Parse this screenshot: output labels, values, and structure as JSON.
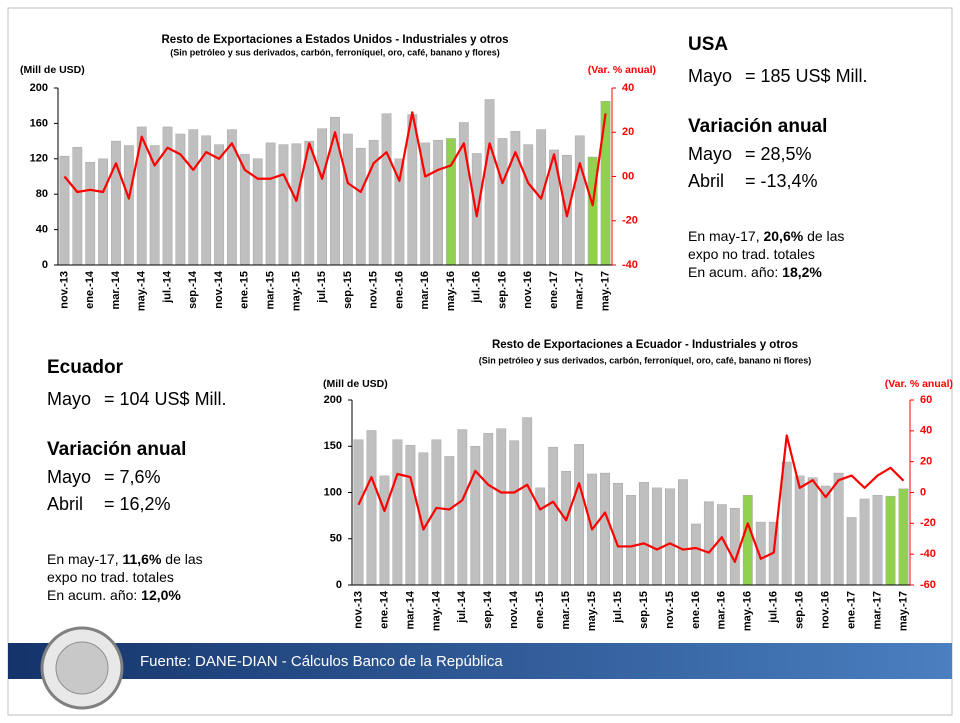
{
  "chart_data": [
    {
      "type": "bar_line",
      "title": "Resto de Exportaciones a Estados Unidos - Industriales y otros",
      "subtitle": "(Sin petróleo y sus derivados, carbón, ferroníquel, oro, café, banano y flores)",
      "y_label": "(Mill de USD)",
      "y2_label": "(Var. % anual)",
      "categories": [
        "nov.-13",
        null,
        "ene.-14",
        null,
        "mar.-14",
        null,
        "may.-14",
        null,
        "jul.-14",
        null,
        "sep.-14",
        null,
        "nov.-14",
        null,
        "ene.-15",
        null,
        "mar.-15",
        null,
        "may.-15",
        null,
        "jul.-15",
        null,
        "sep.-15",
        null,
        "nov.-15",
        null,
        "ene.-16",
        null,
        "mar.-16",
        null,
        "may.-16",
        null,
        "jul.-16",
        null,
        "sep.-16",
        null,
        "nov.-16",
        null,
        "ene.-17",
        null,
        "mar.-17",
        null,
        "may.-17"
      ],
      "series": [
        {
          "type": "bar",
          "colors": [
            "#bfbfbf",
            "#bfbfbf",
            "#bfbfbf",
            "#bfbfbf",
            "#bfbfbf",
            "#bfbfbf",
            "#bfbfbf",
            "#bfbfbf",
            "#bfbfbf",
            "#bfbfbf",
            "#bfbfbf",
            "#bfbfbf",
            "#bfbfbf",
            "#bfbfbf",
            "#bfbfbf",
            "#bfbfbf",
            "#bfbfbf",
            "#bfbfbf",
            "#bfbfbf",
            "#bfbfbf",
            "#bfbfbf",
            "#bfbfbf",
            "#bfbfbf",
            "#bfbfbf",
            "#bfbfbf",
            "#bfbfbf",
            "#bfbfbf",
            "#bfbfbf",
            "#bfbfbf",
            "#bfbfbf",
            "#92d050",
            "#bfbfbf",
            "#bfbfbf",
            "#bfbfbf",
            "#bfbfbf",
            "#bfbfbf",
            "#bfbfbf",
            "#bfbfbf",
            "#bfbfbf",
            "#bfbfbf",
            "#bfbfbf",
            "#92d050",
            "#92d050"
          ],
          "values": [
            123,
            133,
            116,
            120,
            140,
            135,
            156,
            135,
            156,
            148,
            153,
            146,
            136,
            153,
            125,
            120,
            138,
            136,
            137,
            140,
            154,
            167,
            148,
            132,
            141,
            171,
            120,
            170,
            138,
            141,
            143,
            161,
            126,
            187,
            143,
            151,
            136,
            153,
            130,
            124,
            146,
            122,
            185
          ]
        },
        {
          "type": "line",
          "axis": "y2",
          "color": "#ff0000",
          "values": [
            0,
            -7,
            -6,
            -7,
            6,
            -10,
            18,
            5,
            13,
            10,
            3,
            11,
            8,
            15,
            3,
            -1,
            -1,
            1,
            -11,
            15,
            -1,
            20,
            -3,
            -7,
            6,
            11,
            -2,
            29,
            0,
            3,
            5,
            15,
            -18,
            15,
            -3,
            11,
            -3,
            -10,
            10,
            -18,
            6,
            -13,
            28.5
          ]
        }
      ],
      "ylim": [
        0,
        200
      ],
      "yticks": [
        0,
        40,
        80,
        120,
        160,
        200
      ],
      "y2lim": [
        -40,
        40
      ],
      "y2ticks": [
        -40,
        -20,
        {
          "value": 0,
          "label": "00"
        },
        20,
        40
      ]
    },
    {
      "type": "bar_line",
      "title": "Resto de Exportaciones a Ecuador - Industriales y otros",
      "subtitle": "(Sin petróleo y sus derivados, carbón, ferroníquel, oro, café, banano ni flores)",
      "y_label": "(Mill de USD)",
      "y2_label": "(Var. % anual)",
      "categories": [
        "nov.-13",
        null,
        "ene.-14",
        null,
        "mar.-14",
        null,
        "may.-14",
        null,
        "jul.-14",
        null,
        "sep.-14",
        null,
        "nov.-14",
        null,
        "ene.-15",
        null,
        "mar.-15",
        null,
        "may.-15",
        null,
        "jul.-15",
        null,
        "sep.-15",
        null,
        "nov.-15",
        null,
        "ene.-16",
        null,
        "mar.-16",
        null,
        "may.-16",
        null,
        "jul.-16",
        null,
        "sep.-16",
        null,
        "nov.-16",
        null,
        "ene.-17",
        null,
        "mar.-17",
        null,
        "may.-17"
      ],
      "series": [
        {
          "type": "bar",
          "colors": [
            "#bfbfbf",
            "#bfbfbf",
            "#bfbfbf",
            "#bfbfbf",
            "#bfbfbf",
            "#bfbfbf",
            "#bfbfbf",
            "#bfbfbf",
            "#bfbfbf",
            "#bfbfbf",
            "#bfbfbf",
            "#bfbfbf",
            "#bfbfbf",
            "#bfbfbf",
            "#bfbfbf",
            "#bfbfbf",
            "#bfbfbf",
            "#bfbfbf",
            "#bfbfbf",
            "#bfbfbf",
            "#bfbfbf",
            "#bfbfbf",
            "#bfbfbf",
            "#bfbfbf",
            "#bfbfbf",
            "#bfbfbf",
            "#bfbfbf",
            "#bfbfbf",
            "#bfbfbf",
            "#bfbfbf",
            "#92d050",
            "#bfbfbf",
            "#bfbfbf",
            "#bfbfbf",
            "#bfbfbf",
            "#bfbfbf",
            "#bfbfbf",
            "#bfbfbf",
            "#bfbfbf",
            "#bfbfbf",
            "#bfbfbf",
            "#92d050",
            "#92d050"
          ],
          "values": [
            157,
            167,
            118,
            157,
            151,
            143,
            157,
            139,
            168,
            150,
            164,
            169,
            156,
            181,
            105,
            149,
            123,
            152,
            120,
            121,
            110,
            97,
            111,
            105,
            104,
            114,
            66,
            90,
            87,
            83,
            97,
            68,
            68,
            133,
            118,
            116,
            107,
            121,
            73,
            93,
            97,
            96,
            104
          ]
        },
        {
          "type": "line",
          "axis": "y2",
          "color": "#ff0000",
          "values": [
            -8,
            10,
            -12,
            12,
            10,
            -24,
            -10,
            -11,
            -5,
            14,
            5,
            0,
            0,
            5,
            -11,
            -6,
            -18,
            6,
            -24,
            -13,
            -35,
            -35,
            -33,
            -37,
            -33,
            -37,
            -36,
            -39,
            -29,
            -45,
            -20,
            -43,
            -39,
            37,
            3,
            8,
            -3,
            8,
            11,
            3,
            11,
            16,
            7.6
          ]
        }
      ],
      "ylim": [
        0,
        200
      ],
      "yticks": [
        0,
        50,
        100,
        150,
        200
      ],
      "y2lim": [
        -60,
        60
      ],
      "y2ticks": [
        -60,
        -40,
        -20,
        0,
        20,
        40,
        60
      ]
    }
  ],
  "panels": {
    "usa": {
      "name": "USA",
      "month": {
        "label": "Mayo",
        "value": "= 185 US$ Mill."
      },
      "variation_title": "Variación anual",
      "rows": [
        {
          "label": "Mayo",
          "value": "= 28,5%"
        },
        {
          "label": "Abril",
          "value": "= -13,4%"
        }
      ],
      "note": [
        [
          "En may-17, ",
          "20,6%",
          " de las"
        ],
        [
          "expo no trad. totales"
        ],
        [
          "En acum. año: ",
          "18,2%"
        ]
      ]
    },
    "ecuador": {
      "name": "Ecuador",
      "month": {
        "label": "Mayo",
        "value": "= 104 US$ Mill."
      },
      "variation_title": "Variación anual",
      "rows": [
        {
          "label": "Mayo",
          "value": "= 7,6%"
        },
        {
          "label": "Abril",
          "value": "= 16,2%"
        }
      ],
      "note": [
        [
          "En may-17, ",
          "11,6%",
          " de las"
        ],
        [
          "expo no trad. totales"
        ],
        [
          "En acum. año: ",
          "12,0%"
        ]
      ]
    }
  },
  "footer": "Fuente: DANE-DIAN - Cálculos Banco de la República"
}
